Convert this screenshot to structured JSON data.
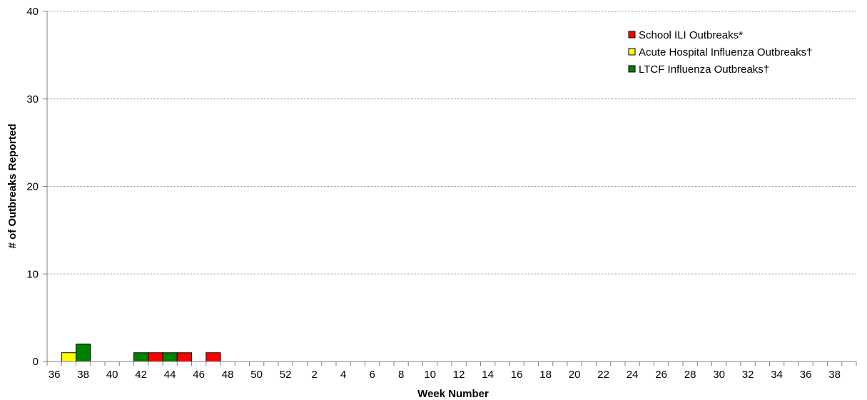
{
  "chart_data": {
    "type": "bar",
    "xlabel": "Week Number",
    "ylabel": "# of Outbreaks Reported",
    "ylim": [
      0,
      40
    ],
    "yticks": [
      0,
      10,
      20,
      30,
      40
    ],
    "grid": "horizontal dotted",
    "legend_position": "top-right",
    "x_weeks": [
      36,
      37,
      38,
      39,
      40,
      41,
      42,
      43,
      44,
      45,
      46,
      47,
      48,
      49,
      50,
      51,
      52,
      1,
      2,
      3,
      4,
      5,
      6,
      7,
      8,
      9,
      10,
      11,
      12,
      13,
      14,
      15,
      16,
      17,
      18,
      19,
      20,
      21,
      22,
      23,
      24,
      25,
      26,
      27,
      28,
      29,
      30,
      31,
      32,
      33,
      34,
      35,
      36,
      37,
      38,
      39
    ],
    "x_tick_labels": [
      "36",
      "38",
      "40",
      "42",
      "44",
      "46",
      "48",
      "50",
      "52",
      "2",
      "4",
      "6",
      "8",
      "10",
      "12",
      "14",
      "16",
      "18",
      "20",
      "22",
      "24",
      "26",
      "28",
      "30",
      "32",
      "34",
      "36",
      "38"
    ],
    "series": [
      {
        "name": "School ILI Outbreaks*",
        "color": "#ff0000",
        "values": [
          0,
          0,
          0,
          0,
          0,
          0,
          0,
          1,
          0,
          1,
          0,
          1,
          0,
          0,
          0,
          0,
          0,
          0,
          0,
          0,
          0,
          0,
          0,
          0,
          0,
          0,
          0,
          0,
          0,
          0,
          0,
          0,
          0,
          0,
          0,
          0,
          0,
          0,
          0,
          0,
          0,
          0,
          0,
          0,
          0,
          0,
          0,
          0,
          0,
          0,
          0,
          0,
          0,
          0,
          0,
          0
        ]
      },
      {
        "name": "Acute Hospital Influenza Outbreaks†",
        "color": "#ffff00",
        "values": [
          0,
          1,
          0,
          0,
          0,
          0,
          0,
          0,
          0,
          0,
          0,
          0,
          0,
          0,
          0,
          0,
          0,
          0,
          0,
          0,
          0,
          0,
          0,
          0,
          0,
          0,
          0,
          0,
          0,
          0,
          0,
          0,
          0,
          0,
          0,
          0,
          0,
          0,
          0,
          0,
          0,
          0,
          0,
          0,
          0,
          0,
          0,
          0,
          0,
          0,
          0,
          0,
          0,
          0,
          0,
          0
        ]
      },
      {
        "name": "LTCF Influenza Outbreaks†",
        "color": "#008000",
        "values": [
          0,
          0,
          2,
          0,
          0,
          0,
          1,
          0,
          1,
          0,
          0,
          0,
          0,
          0,
          0,
          0,
          0,
          0,
          0,
          0,
          0,
          0,
          0,
          0,
          0,
          0,
          0,
          0,
          0,
          0,
          0,
          0,
          0,
          0,
          0,
          0,
          0,
          0,
          0,
          0,
          0,
          0,
          0,
          0,
          0,
          0,
          0,
          0,
          0,
          0,
          0,
          0,
          0,
          0,
          0,
          0
        ]
      }
    ]
  }
}
